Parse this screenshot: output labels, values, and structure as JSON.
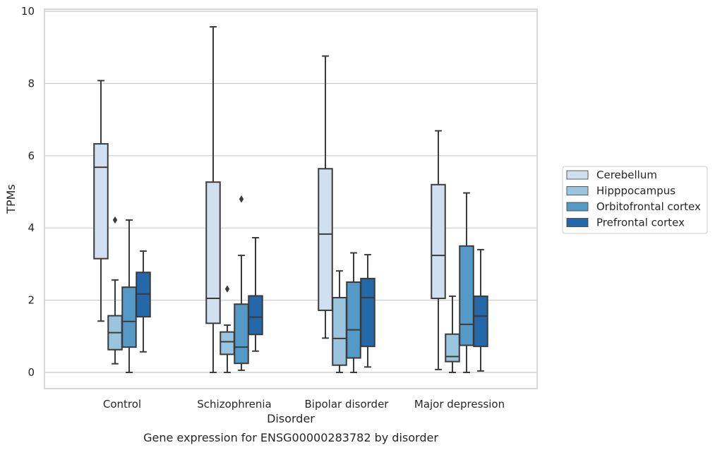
{
  "chart_data": {
    "type": "boxplot",
    "title": "",
    "caption": "Gene expression for ENSG00000283782 by disorder",
    "xlabel": "Disorder",
    "ylabel": "TPMs",
    "ylim": [
      -0.45,
      10.05
    ],
    "yticks": [
      0,
      2,
      4,
      6,
      8,
      10
    ],
    "grid": true,
    "legend_position": "right",
    "categories": [
      "Control",
      "Schizophrenia",
      "Bipolar disorder",
      "Major depression"
    ],
    "series": [
      {
        "name": "Cerebellum",
        "color": "#d1e0f0",
        "boxes": [
          {
            "whislo": 1.42,
            "q1": 3.15,
            "med": 5.68,
            "q3": 6.33,
            "whishi": 8.08,
            "fliers": []
          },
          {
            "whislo": 0.0,
            "q1": 1.36,
            "med": 2.05,
            "q3": 5.27,
            "whishi": 9.57,
            "fliers": []
          },
          {
            "whislo": 0.95,
            "q1": 1.72,
            "med": 3.83,
            "q3": 5.64,
            "whishi": 8.76,
            "fliers": []
          },
          {
            "whislo": 0.08,
            "q1": 2.05,
            "med": 3.24,
            "q3": 5.2,
            "whishi": 6.69,
            "fliers": []
          }
        ]
      },
      {
        "name": "Hipppocampus",
        "color": "#9ac5de",
        "boxes": [
          {
            "whislo": 0.24,
            "q1": 0.63,
            "med": 1.1,
            "q3": 1.57,
            "whishi": 2.56,
            "fliers": [
              4.22
            ]
          },
          {
            "whislo": 0.0,
            "q1": 0.5,
            "med": 0.85,
            "q3": 1.12,
            "whishi": 1.31,
            "fliers": [
              2.31
            ]
          },
          {
            "whislo": 0.0,
            "q1": 0.2,
            "med": 0.94,
            "q3": 2.07,
            "whishi": 2.81,
            "fliers": []
          },
          {
            "whislo": 0.0,
            "q1": 0.3,
            "med": 0.44,
            "q3": 1.06,
            "whishi": 2.11,
            "fliers": []
          }
        ]
      },
      {
        "name": "Orbitofrontal cortex",
        "color": "#5599c6",
        "boxes": [
          {
            "whislo": 0.0,
            "q1": 0.7,
            "med": 1.41,
            "q3": 2.36,
            "whishi": 4.22,
            "fliers": []
          },
          {
            "whislo": 0.06,
            "q1": 0.25,
            "med": 0.7,
            "q3": 1.89,
            "whishi": 3.24,
            "fliers": [
              4.8
            ]
          },
          {
            "whislo": 0.0,
            "q1": 0.4,
            "med": 1.18,
            "q3": 2.5,
            "whishi": 3.31,
            "fliers": []
          },
          {
            "whislo": 0.0,
            "q1": 0.75,
            "med": 1.33,
            "q3": 3.5,
            "whishi": 4.97,
            "fliers": []
          }
        ]
      },
      {
        "name": "Prefrontal cortex",
        "color": "#2468a9",
        "boxes": [
          {
            "whislo": 0.57,
            "q1": 1.54,
            "med": 2.17,
            "q3": 2.77,
            "whishi": 3.36,
            "fliers": []
          },
          {
            "whislo": 0.59,
            "q1": 1.05,
            "med": 1.53,
            "q3": 2.12,
            "whishi": 3.73,
            "fliers": []
          },
          {
            "whislo": 0.15,
            "q1": 0.72,
            "med": 2.07,
            "q3": 2.6,
            "whishi": 3.26,
            "fliers": []
          },
          {
            "whislo": 0.04,
            "q1": 0.72,
            "med": 1.56,
            "q3": 2.11,
            "whishi": 3.4,
            "fliers": []
          }
        ]
      }
    ]
  }
}
